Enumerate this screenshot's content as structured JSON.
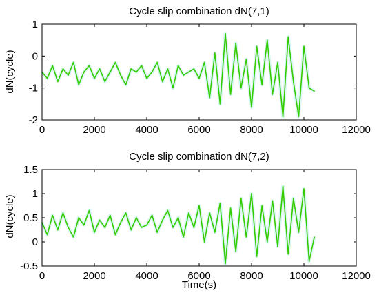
{
  "chart_data": [
    {
      "type": "line",
      "title": "Cycle slip combination dN(7,1)",
      "xlabel": "",
      "ylabel": "dN(cycle)",
      "xlim": [
        0,
        12000
      ],
      "ylim": [
        -2,
        1
      ],
      "xticks": [
        0,
        2000,
        4000,
        6000,
        8000,
        10000,
        12000
      ],
      "xtick_labels": [
        "0",
        "2000",
        "4000",
        "6000",
        "8000",
        "10000",
        "12000"
      ],
      "yticks": [
        1,
        0,
        -1,
        -2
      ],
      "ytick_labels": [
        "1",
        "0",
        "-1",
        "-2"
      ],
      "grid": false,
      "color": "#33cc00",
      "series": [
        {
          "x": [
            0,
            200,
            400,
            600,
            800,
            1000,
            1200,
            1400,
            1600,
            1800,
            2000,
            2200,
            2400,
            2600,
            2800,
            3000,
            3200,
            3400,
            3600,
            3800,
            4000,
            4200,
            4400,
            4600,
            4800,
            5000,
            5200,
            5400,
            5600,
            5800,
            6000,
            6200,
            6400,
            6600,
            6800,
            7000,
            7200,
            7400,
            7600,
            7800,
            8000,
            8200,
            8400,
            8600,
            8800,
            9000,
            9200,
            9400,
            9600,
            9800,
            10000,
            10200,
            10400
          ],
          "values": [
            -0.5,
            -0.7,
            -0.3,
            -0.8,
            -0.4,
            -0.6,
            -0.2,
            -0.9,
            -0.5,
            -0.3,
            -0.7,
            -0.4,
            -0.8,
            -0.5,
            -0.2,
            -0.6,
            -0.9,
            -0.4,
            -0.5,
            -0.3,
            -0.7,
            -0.5,
            -0.2,
            -0.8,
            -0.4,
            -1.0,
            -0.3,
            -0.6,
            -0.5,
            -0.4,
            -0.7,
            -0.2,
            -1.3,
            0.1,
            -1.5,
            0.7,
            -1.2,
            0.4,
            -1.0,
            -0.1,
            -1.6,
            0.3,
            -0.9,
            0.5,
            -1.2,
            -0.2,
            -1.9,
            0.6,
            -0.8,
            -1.9,
            0.3,
            -1.0,
            -1.1
          ]
        }
      ]
    },
    {
      "type": "line",
      "title": "Cycle slip combination dN(7,2)",
      "xlabel": "Time(s)",
      "ylabel": "dN(cycle)",
      "xlim": [
        0,
        12000
      ],
      "ylim": [
        -0.5,
        1.5
      ],
      "xticks": [
        0,
        2000,
        4000,
        6000,
        8000,
        10000,
        12000
      ],
      "xtick_labels": [
        "0",
        "2000",
        "4000",
        "6000",
        "8000",
        "10000",
        "12000"
      ],
      "yticks": [
        1.5,
        1,
        0.5,
        0,
        -0.5
      ],
      "ytick_labels": [
        "1.5",
        "1",
        "0.5",
        "0",
        "-0.5"
      ],
      "grid": false,
      "color": "#33cc00",
      "series": [
        {
          "x": [
            0,
            200,
            400,
            600,
            800,
            1000,
            1200,
            1400,
            1600,
            1800,
            2000,
            2200,
            2400,
            2600,
            2800,
            3000,
            3200,
            3400,
            3600,
            3800,
            4000,
            4200,
            4400,
            4600,
            4800,
            5000,
            5200,
            5400,
            5600,
            5800,
            6000,
            6200,
            6400,
            6600,
            6800,
            7000,
            7200,
            7400,
            7600,
            7800,
            8000,
            8200,
            8400,
            8600,
            8800,
            9000,
            9200,
            9400,
            9600,
            9800,
            10000,
            10200,
            10400
          ],
          "values": [
            0.4,
            0.15,
            0.55,
            0.25,
            0.6,
            0.3,
            0.1,
            0.5,
            0.35,
            0.65,
            0.2,
            0.45,
            0.3,
            0.55,
            0.15,
            0.4,
            0.6,
            0.25,
            0.5,
            0.3,
            0.35,
            0.55,
            0.2,
            0.45,
            0.65,
            0.3,
            0.5,
            0.1,
            0.6,
            0.3,
            0.75,
            0.0,
            0.6,
            0.2,
            0.8,
            -0.45,
            0.7,
            -0.2,
            0.9,
            0.1,
            1.0,
            -0.3,
            0.75,
            0.0,
            0.85,
            -0.1,
            1.15,
            -0.25,
            0.9,
            0.2,
            1.1,
            -0.4,
            0.1
          ]
        }
      ]
    }
  ]
}
